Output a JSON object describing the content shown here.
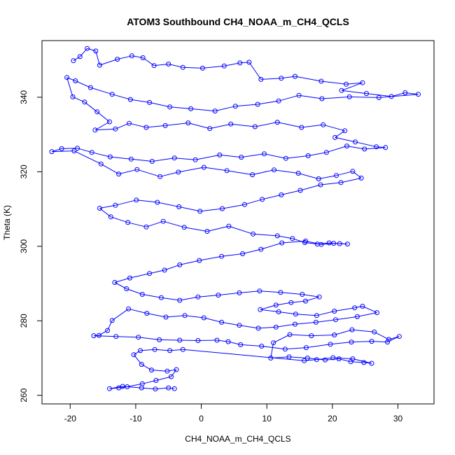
{
  "chart_data": {
    "type": "scatter",
    "title": "ATOM3 Southbound CH4_NOAA_m_CH4_QCLS",
    "xlabel": "CH4_NOAA_m_CH4_QCLS",
    "ylabel": "Theta (K)",
    "xlim": [
      -24.3,
      35.5
    ],
    "ylim": [
      257.7,
      355.2
    ],
    "xticks": [
      -20,
      -10,
      0,
      10,
      20,
      30
    ],
    "xtick_labels": [
      "-20",
      "-10",
      "0",
      "10",
      "20",
      "30"
    ],
    "yticks": [
      260,
      280,
      300,
      320,
      340
    ],
    "ytick_labels": [
      "260",
      "280",
      "300",
      "320",
      "340"
    ],
    "marker": "open-circle",
    "color": "#0000ff",
    "connected": true,
    "series": [
      {
        "points": [
          [
            -19.5,
            349.8
          ],
          [
            -18.5,
            350.9
          ],
          [
            -17.4,
            353.1
          ],
          [
            -16.1,
            352.4
          ],
          [
            -15.5,
            348.6
          ],
          [
            -12.8,
            350.2
          ],
          [
            -10.6,
            351.1
          ],
          [
            -8.9,
            350.6
          ],
          [
            -7.2,
            348.5
          ],
          [
            -5.0,
            348.9
          ],
          [
            -2.8,
            348.0
          ],
          [
            0.2,
            347.8
          ],
          [
            3.5,
            348.4
          ],
          [
            5.9,
            349.2
          ],
          [
            7.3,
            349.4
          ],
          [
            9.1,
            344.8
          ],
          [
            12.2,
            345.1
          ],
          [
            14.3,
            345.6
          ],
          [
            18.3,
            344.3
          ],
          [
            22.1,
            343.5
          ],
          [
            24.6,
            343.9
          ],
          [
            21.4,
            341.8
          ],
          [
            25.2,
            341.0
          ],
          [
            29.0,
            340.2
          ],
          [
            31.1,
            341.2
          ],
          [
            33.1,
            340.8
          ],
          [
            27.1,
            339.9
          ],
          [
            22.6,
            340.1
          ],
          [
            18.4,
            339.6
          ],
          [
            14.9,
            340.5
          ],
          [
            11.8,
            339.0
          ],
          [
            8.6,
            338.1
          ],
          [
            5.2,
            337.6
          ],
          [
            2.1,
            336.3
          ],
          [
            -1.6,
            336.9
          ],
          [
            -4.8,
            337.4
          ],
          [
            -7.9,
            338.6
          ],
          [
            -10.8,
            339.4
          ],
          [
            -13.6,
            340.8
          ],
          [
            -16.9,
            342.6
          ],
          [
            -19.2,
            344.4
          ],
          [
            -20.5,
            345.3
          ],
          [
            -19.6,
            340.1
          ],
          [
            -17.8,
            338.7
          ],
          [
            -15.9,
            336.1
          ],
          [
            -14.0,
            333.4
          ],
          [
            -16.2,
            331.2
          ],
          [
            -13.1,
            331.5
          ],
          [
            -11.0,
            333.0
          ],
          [
            -8.4,
            331.9
          ],
          [
            -5.5,
            332.4
          ],
          [
            -2.0,
            333.1
          ],
          [
            1.3,
            331.6
          ],
          [
            4.5,
            332.8
          ],
          [
            8.2,
            332.1
          ],
          [
            11.6,
            333.3
          ],
          [
            15.3,
            331.9
          ],
          [
            18.6,
            332.6
          ],
          [
            21.9,
            331.0
          ],
          [
            20.4,
            329.2
          ],
          [
            23.5,
            328.0
          ],
          [
            26.7,
            326.7
          ],
          [
            28.1,
            326.5
          ],
          [
            24.9,
            326.1
          ],
          [
            22.2,
            326.9
          ],
          [
            19.1,
            325.2
          ],
          [
            16.3,
            324.3
          ],
          [
            12.9,
            323.6
          ],
          [
            9.6,
            324.8
          ],
          [
            6.1,
            323.9
          ],
          [
            2.8,
            324.5
          ],
          [
            -0.9,
            323.2
          ],
          [
            -4.1,
            323.7
          ],
          [
            -7.5,
            322.8
          ],
          [
            -10.7,
            323.4
          ],
          [
            -13.9,
            324.0
          ],
          [
            -16.7,
            325.2
          ],
          [
            -18.9,
            326.3
          ],
          [
            -21.3,
            326.2
          ],
          [
            -22.8,
            325.4
          ],
          [
            -19.4,
            325.6
          ],
          [
            -15.3,
            322.1
          ],
          [
            -12.6,
            319.4
          ],
          [
            -9.8,
            320.6
          ],
          [
            -6.3,
            318.7
          ],
          [
            -3.5,
            319.9
          ],
          [
            0.4,
            321.2
          ],
          [
            3.9,
            320.3
          ],
          [
            7.8,
            319.2
          ],
          [
            11.1,
            320.5
          ],
          [
            14.8,
            319.6
          ],
          [
            17.9,
            318.1
          ],
          [
            20.6,
            319.0
          ],
          [
            23.1,
            320.1
          ],
          [
            24.4,
            318.3
          ],
          [
            21.3,
            317.1
          ],
          [
            18.2,
            316.5
          ],
          [
            15.1,
            315.0
          ],
          [
            12.2,
            313.8
          ],
          [
            9.3,
            312.6
          ],
          [
            6.6,
            311.2
          ],
          [
            3.2,
            310.1
          ],
          [
            -0.2,
            309.4
          ],
          [
            -3.4,
            310.6
          ],
          [
            -6.7,
            311.8
          ],
          [
            -9.9,
            312.4
          ],
          [
            -13.1,
            311.0
          ],
          [
            -15.5,
            310.2
          ],
          [
            -13.8,
            307.9
          ],
          [
            -11.2,
            306.4
          ],
          [
            -8.4,
            305.2
          ],
          [
            -5.8,
            306.7
          ],
          [
            -2.6,
            305.1
          ],
          [
            0.9,
            304.0
          ],
          [
            4.2,
            305.4
          ],
          [
            7.9,
            303.3
          ],
          [
            11.6,
            302.8
          ],
          [
            13.9,
            302.1
          ],
          [
            15.8,
            301.0
          ],
          [
            17.7,
            300.6
          ],
          [
            19.5,
            300.9
          ],
          [
            21.1,
            300.7
          ],
          [
            22.3,
            300.6
          ],
          [
            20.2,
            300.8
          ],
          [
            18.3,
            300.5
          ],
          [
            15.9,
            301.4
          ],
          [
            12.3,
            300.9
          ],
          [
            9.1,
            299.2
          ],
          [
            6.3,
            298.0
          ],
          [
            3.1,
            297.3
          ],
          [
            -0.3,
            296.2
          ],
          [
            -3.3,
            295.0
          ],
          [
            -5.6,
            293.6
          ],
          [
            -7.9,
            292.7
          ],
          [
            -10.9,
            291.5
          ],
          [
            -13.2,
            290.3
          ],
          [
            -11.4,
            288.6
          ],
          [
            -9.0,
            287.1
          ],
          [
            -6.1,
            286.2
          ],
          [
            -3.3,
            285.5
          ],
          [
            -0.5,
            286.4
          ],
          [
            2.6,
            286.9
          ],
          [
            5.8,
            287.5
          ],
          [
            8.9,
            288.0
          ],
          [
            12.1,
            287.6
          ],
          [
            15.4,
            287.1
          ],
          [
            18.0,
            286.4
          ],
          [
            15.9,
            285.3
          ],
          [
            13.7,
            284.9
          ],
          [
            11.4,
            284.2
          ],
          [
            9.0,
            283.0
          ],
          [
            11.8,
            282.4
          ],
          [
            14.4,
            281.8
          ],
          [
            17.6,
            281.4
          ],
          [
            20.3,
            282.6
          ],
          [
            23.4,
            283.5
          ],
          [
            24.6,
            283.9
          ],
          [
            26.8,
            282.2
          ],
          [
            23.8,
            281.1
          ],
          [
            20.5,
            280.3
          ],
          [
            17.5,
            279.6
          ],
          [
            14.3,
            279.1
          ],
          [
            11.4,
            278.3
          ],
          [
            8.7,
            278.0
          ],
          [
            5.8,
            278.8
          ],
          [
            3.1,
            279.6
          ],
          [
            0.4,
            280.8
          ],
          [
            -2.5,
            281.4
          ],
          [
            -5.4,
            281.0
          ],
          [
            -8.3,
            282.0
          ],
          [
            -11.1,
            283.2
          ],
          [
            -13.6,
            280.1
          ],
          [
            -14.3,
            277.4
          ],
          [
            -15.6,
            276.1
          ],
          [
            -16.4,
            276.0
          ],
          [
            -13.0,
            275.8
          ],
          [
            -9.6,
            275.6
          ],
          [
            -6.4,
            274.9
          ],
          [
            -3.3,
            274.8
          ],
          [
            -0.5,
            274.7
          ],
          [
            2.4,
            274.8
          ],
          [
            4.1,
            274.4
          ],
          [
            6.0,
            273.6
          ],
          [
            9.2,
            273.2
          ],
          [
            12.8,
            272.4
          ],
          [
            16.0,
            272.8
          ],
          [
            19.7,
            273.7
          ],
          [
            22.9,
            274.3
          ],
          [
            26.0,
            274.5
          ],
          [
            28.4,
            274.3
          ],
          [
            30.2,
            275.8
          ],
          [
            28.6,
            275.0
          ],
          [
            26.4,
            277.0
          ],
          [
            23.0,
            277.6
          ],
          [
            20.3,
            276.2
          ],
          [
            16.8,
            276.0
          ],
          [
            13.5,
            276.3
          ],
          [
            11.0,
            274.1
          ],
          [
            10.6,
            270.0
          ],
          [
            13.4,
            270.3
          ],
          [
            16.2,
            270.0
          ],
          [
            18.9,
            269.5
          ],
          [
            21.0,
            269.8
          ],
          [
            22.8,
            269.0
          ],
          [
            24.8,
            268.8
          ],
          [
            26.0,
            268.6
          ],
          [
            23.1,
            269.8
          ],
          [
            20.1,
            270.1
          ],
          [
            17.6,
            269.6
          ],
          [
            15.7,
            269.3
          ],
          [
            -2.8,
            272.3
          ],
          [
            -4.8,
            272.0
          ],
          [
            -7.1,
            272.3
          ],
          [
            -9.3,
            272.0
          ],
          [
            -10.3,
            270.9
          ],
          [
            -9.1,
            268.3
          ],
          [
            -7.6,
            266.8
          ],
          [
            -5.2,
            266.5
          ],
          [
            -3.8,
            266.9
          ],
          [
            -4.6,
            265.0
          ],
          [
            -6.9,
            264.0
          ],
          [
            -9.0,
            263.1
          ],
          [
            -11.3,
            262.3
          ],
          [
            -12.6,
            262.0
          ],
          [
            -14.0,
            261.8
          ],
          [
            -12.0,
            262.4
          ],
          [
            -9.1,
            262.0
          ],
          [
            -7.0,
            261.7
          ],
          [
            -5.0,
            262.0
          ],
          [
            -4.1,
            261.8
          ]
        ]
      }
    ]
  }
}
